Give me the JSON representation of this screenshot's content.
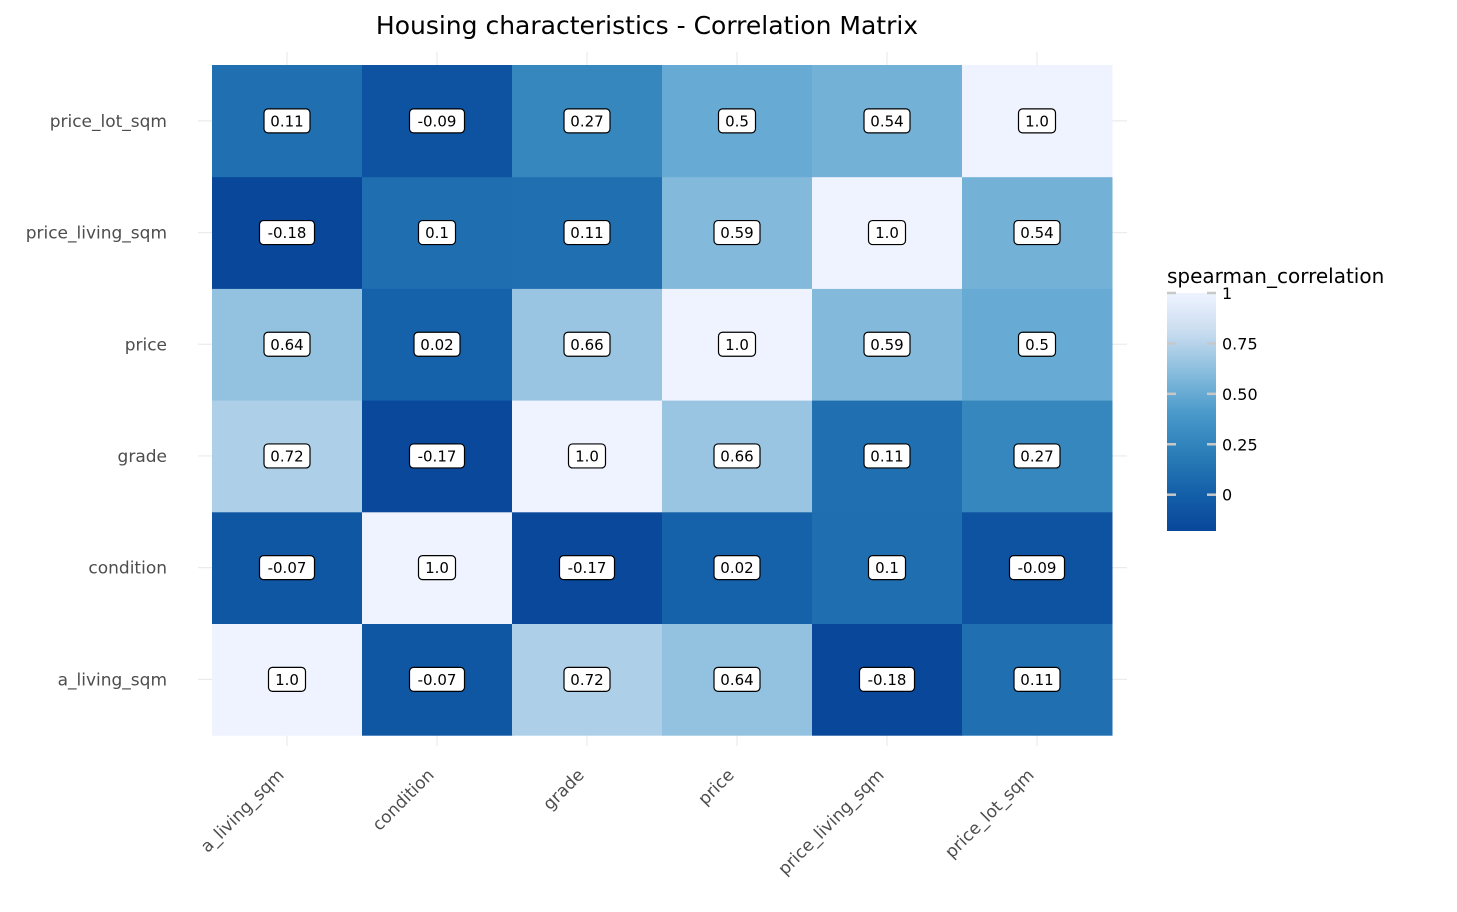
{
  "chart_data": {
    "type": "heatmap",
    "title": "Housing characteristics - Correlation Matrix",
    "x_categories": [
      "a_living_sqm",
      "condition",
      "grade",
      "price",
      "price_living_sqm",
      "price_lot_sqm"
    ],
    "y_categories": [
      "a_living_sqm",
      "condition",
      "grade",
      "price",
      "price_living_sqm",
      "price_lot_sqm"
    ],
    "values": [
      [
        1.0,
        -0.07,
        0.72,
        0.64,
        -0.18,
        0.11
      ],
      [
        -0.07,
        1.0,
        -0.17,
        0.02,
        0.1,
        -0.09
      ],
      [
        0.72,
        -0.17,
        1.0,
        0.66,
        0.11,
        0.27
      ],
      [
        0.64,
        0.02,
        0.66,
        1.0,
        0.59,
        0.5
      ],
      [
        -0.18,
        0.1,
        0.11,
        0.59,
        1.0,
        0.54
      ],
      [
        0.11,
        -0.09,
        0.27,
        0.5,
        0.54,
        1.0
      ]
    ],
    "labels": [
      [
        "1.0",
        "-0.07",
        "0.72",
        "0.64",
        "-0.18",
        "0.11"
      ],
      [
        "-0.07",
        "1.0",
        "-0.17",
        "0.02",
        "0.1",
        "-0.09"
      ],
      [
        "0.72",
        "-0.17",
        "1.0",
        "0.66",
        "0.11",
        "0.27"
      ],
      [
        "0.64",
        "0.02",
        "0.66",
        "1.0",
        "0.59",
        "0.5"
      ],
      [
        "-0.18",
        "0.1",
        "0.11",
        "0.59",
        "1.0",
        "0.54"
      ],
      [
        "0.11",
        "-0.09",
        "0.27",
        "0.5",
        "0.54",
        "1.0"
      ]
    ],
    "legend": {
      "title": "spearman_correlation",
      "ticks": [
        1,
        0.75,
        0.5,
        0.25,
        0
      ],
      "tick_labels": [
        "1",
        "0.75",
        "0.50",
        "0.25",
        "0"
      ],
      "range": [
        -0.18,
        1.0
      ],
      "placement": "right"
    },
    "colorscale": [
      "#08479a",
      "#1561aa",
      "#2c7fb9",
      "#4b9acb",
      "#88bddd",
      "#c8dcef",
      "#eff3ff"
    ],
    "grid": true
  }
}
